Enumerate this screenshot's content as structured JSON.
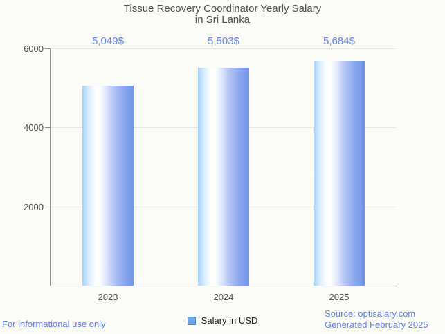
{
  "title": {
    "line1": "Tissue Recovery Coordinator Yearly Salary",
    "line2": "in Sri Lanka"
  },
  "chart_data": {
    "type": "bar",
    "title": "Tissue Recovery Coordinator Yearly Salary in Sri Lanka",
    "categories": [
      "2023",
      "2024",
      "2025"
    ],
    "values": [
      5049,
      5503,
      5684
    ],
    "value_labels": [
      "5,049$",
      "5,503$",
      "5,684$"
    ],
    "series": [
      {
        "name": "Salary in USD",
        "values": [
          5049,
          5503,
          5684
        ]
      }
    ],
    "xlabel": "",
    "ylabel": "",
    "ylim": [
      0,
      6000
    ],
    "yticks": [
      2000,
      4000,
      6000
    ],
    "grid": true,
    "legend_position": "bottom"
  },
  "legend": {
    "label": "Salary in USD"
  },
  "footer": {
    "left": "For informational use only",
    "source": "Source: optisalary.com",
    "generated": "Generated February 2025"
  },
  "colors": {
    "background": "#fbfbf7",
    "bar_left": "#a2d2fc",
    "bar_highlight": "#ffffff",
    "bar_right": "#6f94e9",
    "value_label": "#5d87e7",
    "footer_text": "#5b7fe0",
    "title_text": "#4d4d4d",
    "axis": "#8c8c8c",
    "grid": "#e6e6e6",
    "legend_swatch": "#6fa3e0"
  }
}
